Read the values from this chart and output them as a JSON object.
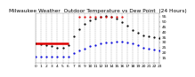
{
  "title": "Milwaukee Weather  Outdoor Temperature vs Dew Point  (24 Hours)",
  "background_color": "#ffffff",
  "grid_color": "#888888",
  "ylim": [
    10,
    58
  ],
  "xlim": [
    0,
    23
  ],
  "ytick_vals": [
    15,
    20,
    25,
    30,
    35,
    40,
    45,
    50,
    55
  ],
  "ytick_labels": [
    "15",
    "20",
    "25",
    "30",
    "35",
    "40",
    "45",
    "50",
    "55"
  ],
  "xtick_vals": [
    0,
    1,
    2,
    3,
    4,
    5,
    6,
    7,
    8,
    9,
    10,
    11,
    12,
    13,
    14,
    15,
    16,
    17,
    18,
    19,
    20,
    21,
    22,
    23
  ],
  "temp_x": [
    0,
    1,
    2,
    3,
    4,
    5,
    6,
    7,
    8,
    9,
    10,
    11,
    12,
    13,
    14,
    15,
    16,
    17,
    18,
    19,
    20,
    21,
    22,
    23
  ],
  "temp_y": [
    29,
    28,
    27,
    26,
    25,
    25,
    27,
    36,
    43,
    48,
    51,
    53,
    55,
    56,
    55,
    53,
    50,
    46,
    42,
    39,
    37,
    36,
    35,
    34
  ],
  "dew_x": [
    0,
    1,
    2,
    3,
    4,
    5,
    6,
    7,
    8,
    9,
    10,
    11,
    12,
    13,
    14,
    15,
    16,
    17,
    18,
    19,
    20,
    21,
    22,
    23
  ],
  "dew_y": [
    16,
    16,
    16,
    16,
    16,
    16,
    16,
    19,
    22,
    24,
    26,
    27,
    29,
    30,
    30,
    31,
    31,
    30,
    29,
    27,
    25,
    24,
    23,
    22
  ],
  "hi_x": [
    0,
    1,
    2,
    3,
    4,
    5,
    6
  ],
  "hi_y": [
    29,
    29,
    29,
    29,
    29,
    29,
    29
  ],
  "hi_dot_x": [
    8,
    9,
    10,
    11,
    12,
    13,
    14,
    15,
    16
  ],
  "hi_dot_y": [
    55,
    55,
    55,
    55,
    55,
    55,
    55,
    55,
    55
  ],
  "temp_color": "#000000",
  "dew_color": "#0000dd",
  "hi_color": "#dd0000",
  "title_fontsize": 4.2,
  "tick_fontsize": 3.2,
  "marker_size": 1.2,
  "hi_linewidth": 1.8
}
